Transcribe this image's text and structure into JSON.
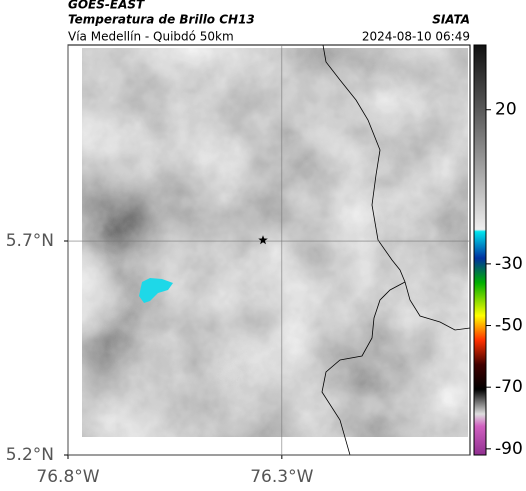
{
  "header": {
    "satellite": "GOES-EAST",
    "title": "Temperatura de Brillo CH13",
    "subtitle": "Vía Medellín - Quibdó 50km",
    "source": "SIATA",
    "datetime": "2024-08-10 06:49"
  },
  "map": {
    "lonlim": [
      -76.8,
      -75.86
    ],
    "latlim": [
      5.2,
      6.158
    ],
    "lonticks": [
      {
        "value": -76.8,
        "label": "76.8°W"
      },
      {
        "value": -76.3,
        "label": "76.3°W"
      }
    ],
    "latticks": [
      {
        "value": 5.2,
        "label": "5.2°N"
      },
      {
        "value": 5.7,
        "label": "5.7°N"
      }
    ],
    "grid": true,
    "marker": {
      "lon": -76.344,
      "lat": 5.702
    }
  },
  "colorbar": {
    "lim": [
      41,
      -92
    ],
    "ticks": [
      20,
      -30,
      -50,
      -70,
      -90
    ]
  }
}
